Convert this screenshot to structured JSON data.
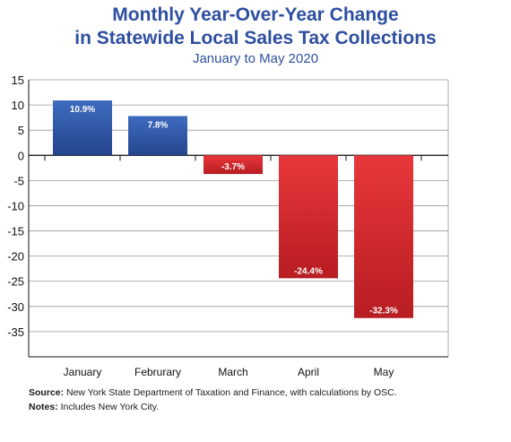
{
  "chart_data": {
    "type": "bar",
    "title_line1": "Monthly Year-Over-Year Change",
    "title_line2": "in Statewide Local Sales Tax Collections",
    "subtitle": "January to May 2020",
    "categories": [
      "January",
      "Februrary",
      "March",
      "April",
      "May"
    ],
    "values": [
      10.9,
      7.8,
      -3.7,
      -24.4,
      -32.3
    ],
    "data_labels": [
      "10.9%",
      "7.8%",
      "-3.7%",
      "-24.4%",
      "-32.3%"
    ],
    "y_ticks": [
      15,
      10,
      5,
      0,
      -5,
      -10,
      -15,
      -20,
      -25,
      -30,
      -35
    ],
    "y_tick_labels": [
      "15",
      "10",
      "5",
      "0",
      "-5",
      "-10",
      "-15",
      "-20",
      "-25",
      "-30",
      "-35"
    ],
    "ylim": [
      -40,
      15
    ],
    "grid": true,
    "colors": {
      "positive": "#2f5aa8",
      "negative": "#d0262b"
    }
  },
  "notes": {
    "source_label": "Source:",
    "source_text": " New York State Department of Taxation and Finance, with calculations by OSC.",
    "notes_label": "Notes:",
    "notes_text": " Includes New York City."
  }
}
